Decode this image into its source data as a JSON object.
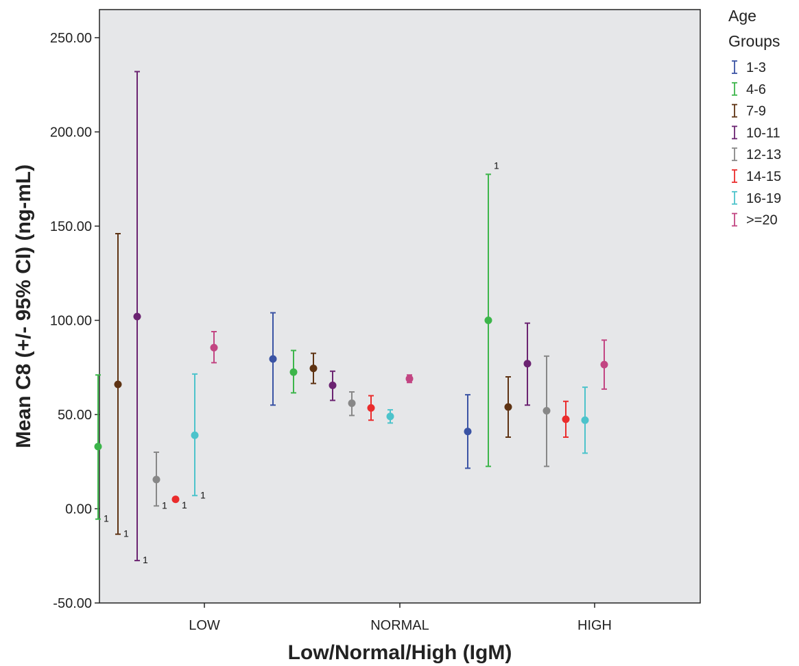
{
  "chart_data": {
    "type": "errorbar",
    "xlabel": "Low/Normal/High (IgM)",
    "ylabel": "Mean C8 (+/- 95% CI) (ng-mL)",
    "ylim": [
      -50,
      260
    ],
    "yticks": [
      -50,
      0,
      50,
      100,
      150,
      200,
      250
    ],
    "ytick_labels": [
      "-50.00",
      "0.00",
      "50.00",
      "100.00",
      "150.00",
      "200.00",
      "250.00"
    ],
    "categories": [
      "LOW",
      "NORMAL",
      "HIGH"
    ],
    "grid": false,
    "legend": {
      "title": "Age Groups",
      "placement": "right"
    },
    "series": [
      {
        "name": "1-3",
        "color": "#3a53a4",
        "points": [
          null,
          {
            "mean": 79.5,
            "lower": 55,
            "upper": 104
          },
          {
            "mean": 41,
            "lower": 21.5,
            "upper": 60.5
          }
        ]
      },
      {
        "name": "4-6",
        "color": "#3cb54a",
        "points": [
          {
            "mean": 33,
            "lower": -5.5,
            "upper": 71,
            "annot": "1"
          },
          {
            "mean": 72.5,
            "lower": 61.5,
            "upper": 84
          },
          {
            "mean": 100,
            "lower": 22.5,
            "upper": 177.5,
            "annot": "1"
          }
        ]
      },
      {
        "name": "7-9",
        "color": "#5e3313",
        "points": [
          {
            "mean": 66,
            "lower": -13.5,
            "upper": 146,
            "annot": "1"
          },
          {
            "mean": 74.5,
            "lower": 66.5,
            "upper": 82.5
          },
          {
            "mean": 54,
            "lower": 38,
            "upper": 70
          }
        ]
      },
      {
        "name": "10-11",
        "color": "#6b2371",
        "points": [
          {
            "mean": 102,
            "lower": -27.5,
            "upper": 232,
            "annot": "1"
          },
          {
            "mean": 65.5,
            "lower": 57.5,
            "upper": 73
          },
          {
            "mean": 77,
            "lower": 55,
            "upper": 98.5
          }
        ]
      },
      {
        "name": "12-13",
        "color": "#878787",
        "points": [
          {
            "mean": 15.5,
            "lower": 1.5,
            "upper": 30,
            "annot": "1"
          },
          {
            "mean": 56,
            "lower": 49.5,
            "upper": 62
          },
          {
            "mean": 52,
            "lower": 22.5,
            "upper": 81
          }
        ]
      },
      {
        "name": "14-15",
        "color": "#ea2c2c",
        "points": [
          {
            "mean": 5,
            "lower": 5,
            "upper": 5,
            "annot": "1"
          },
          {
            "mean": 53.5,
            "lower": 47,
            "upper": 60
          },
          {
            "mean": 47.5,
            "lower": 38,
            "upper": 57
          }
        ]
      },
      {
        "name": "16-19",
        "color": "#4cc3cb",
        "points": [
          {
            "mean": 39,
            "lower": 7,
            "upper": 71.5,
            "annot": "1"
          },
          {
            "mean": 49,
            "lower": 45.5,
            "upper": 52.5
          },
          {
            "mean": 47,
            "lower": 29.5,
            "upper": 64.5
          }
        ]
      },
      {
        "name": ">=20",
        "color": "#c24582",
        "points": [
          {
            "mean": 85.5,
            "lower": 77.5,
            "upper": 94
          },
          {
            "mean": 69,
            "lower": 67,
            "upper": 71
          },
          {
            "mean": 76.5,
            "lower": 63.5,
            "upper": 89.5
          }
        ]
      }
    ]
  }
}
